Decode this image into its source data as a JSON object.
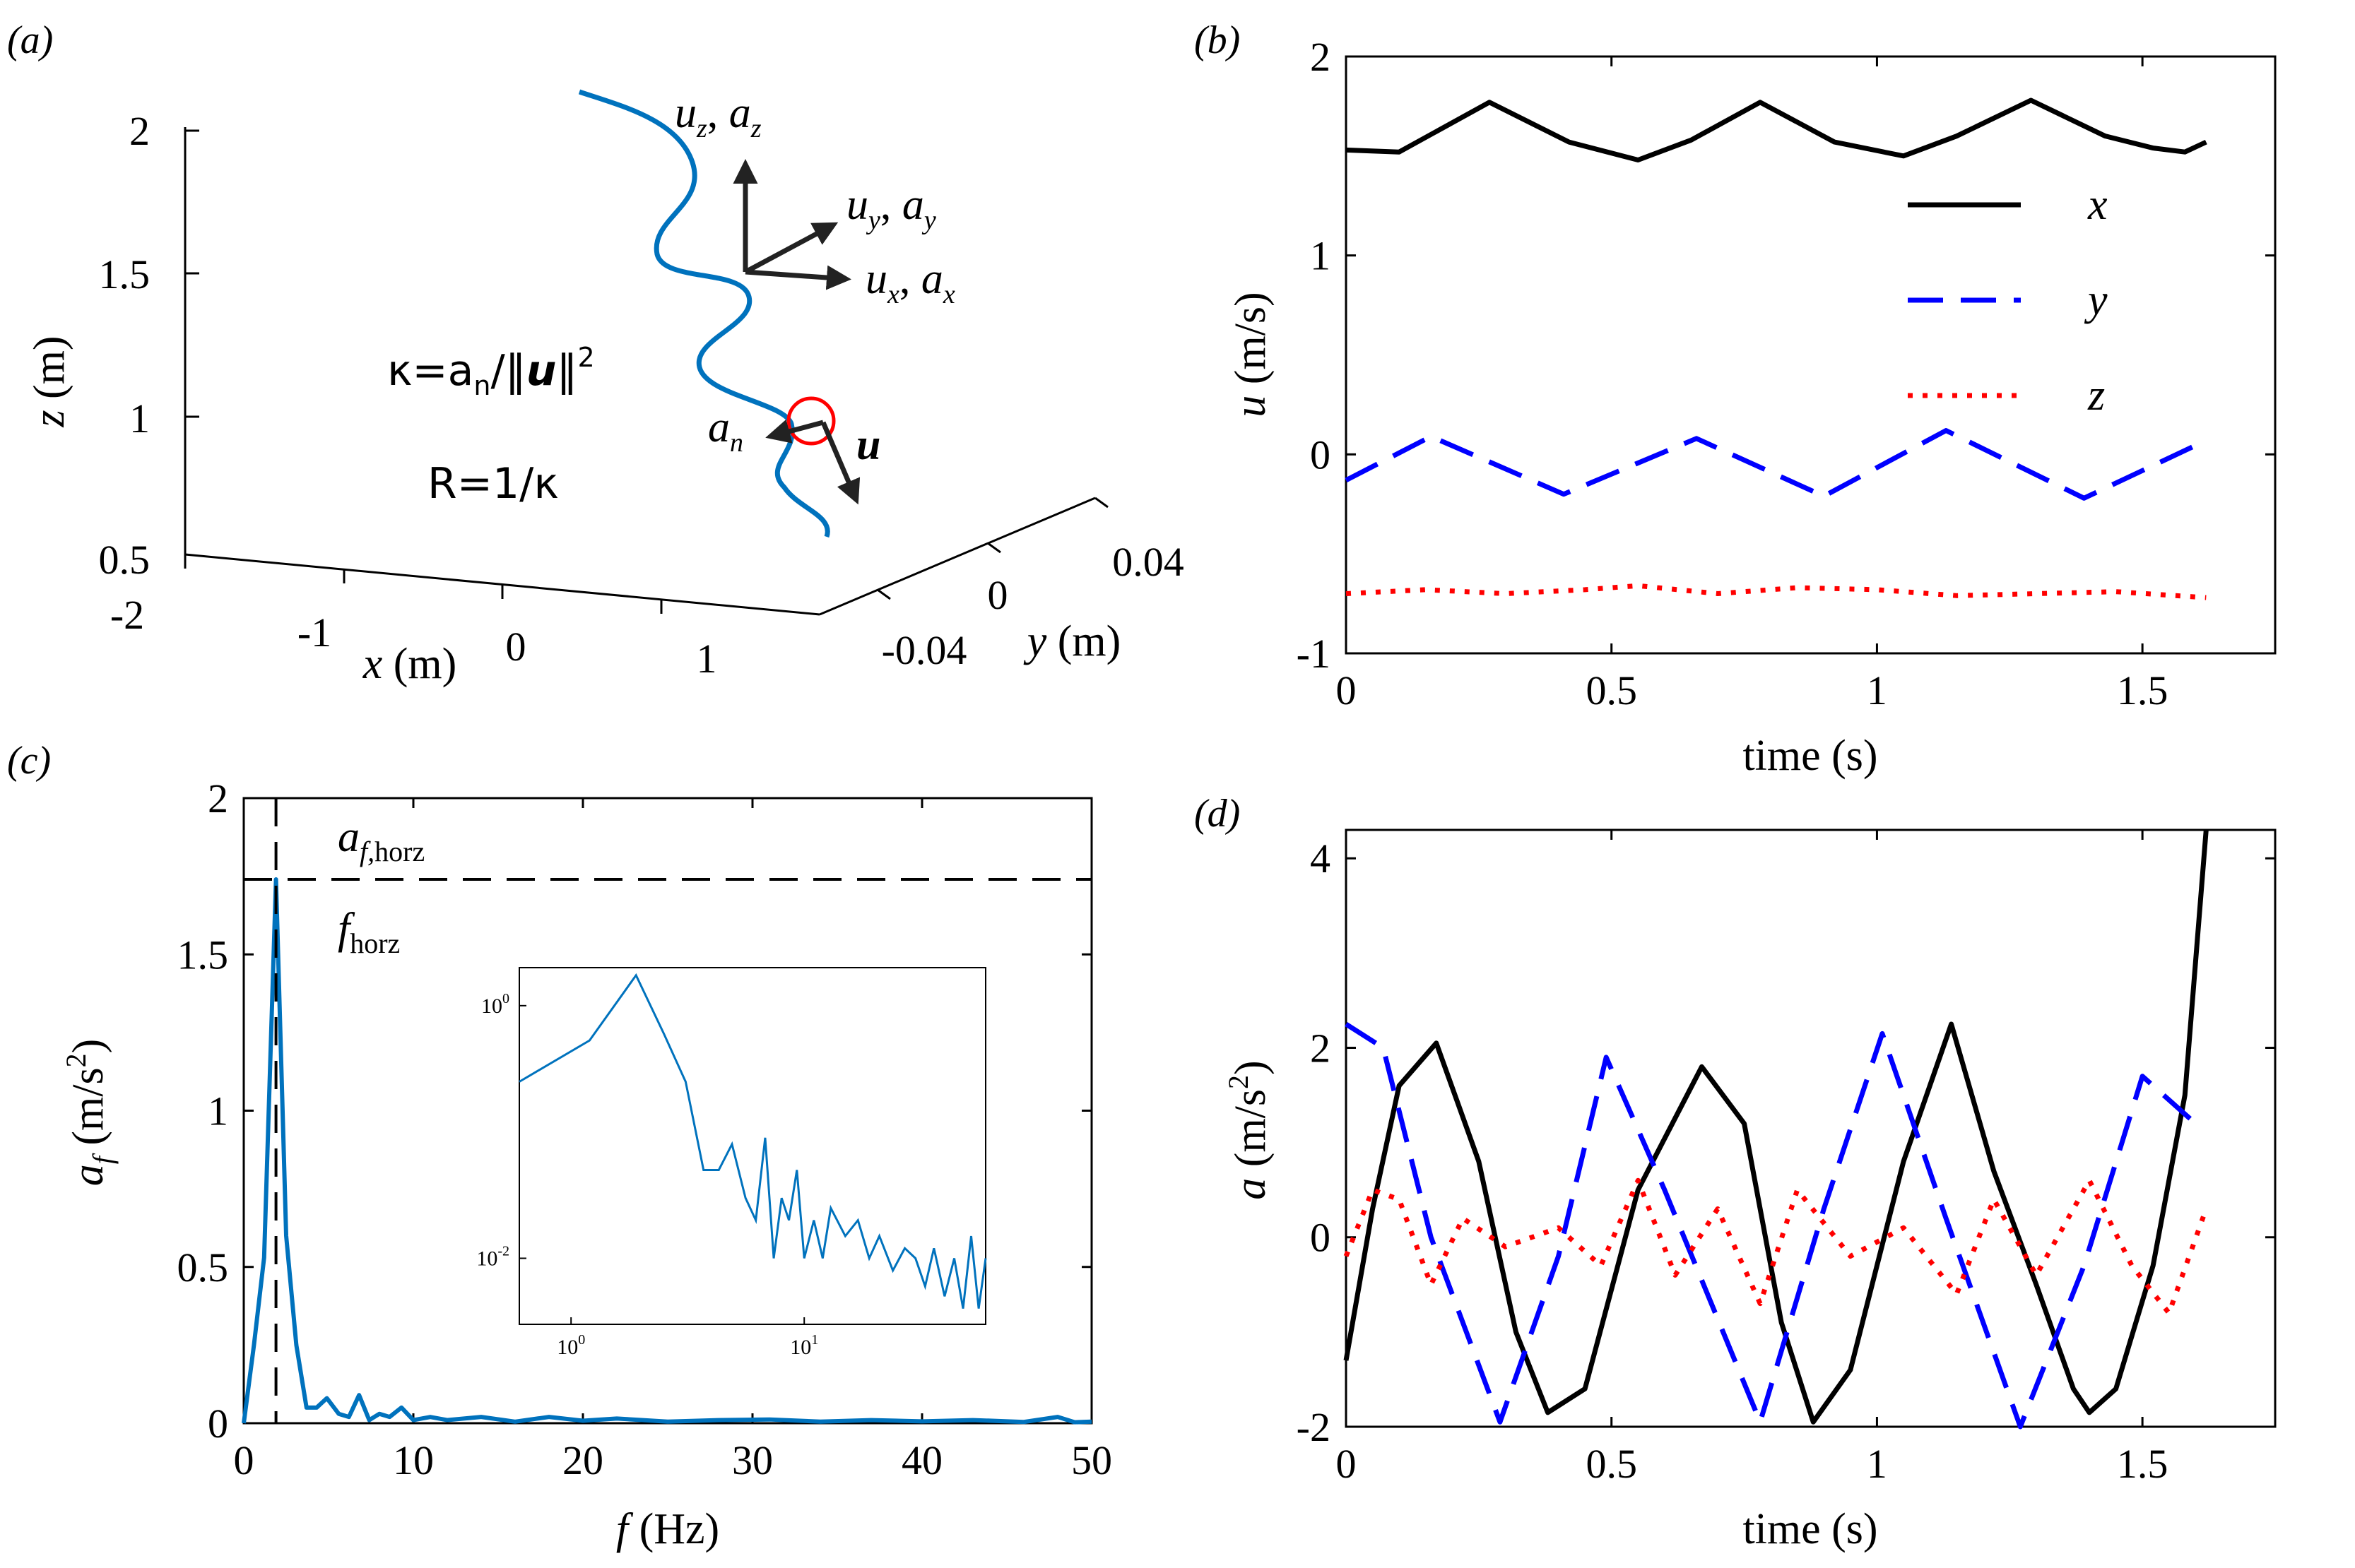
{
  "figure": {
    "colors": {
      "x": "#000000",
      "y": "#0000ff",
      "z": "#ff0000",
      "traj": "#0072bd",
      "axis": "#000000"
    }
  },
  "chart_data": [
    {
      "id": "a",
      "panel_label": "(a)",
      "type": "line",
      "title": "",
      "xlabel_var": "x",
      "xlabel_unit": "(m)",
      "ylabel_var": "y",
      "ylabel_unit": "(m)",
      "zlabel_var": "z",
      "zlabel_unit": "(m)",
      "xticks": [
        "-2",
        "-1",
        "0",
        "1"
      ],
      "yticks": [
        "-0.04",
        "0",
        "0.04"
      ],
      "zticks": [
        "0.5",
        "1",
        "1.5",
        "2"
      ],
      "zlim": [
        0.5,
        2
      ],
      "trajectory_z": [
        2.0,
        0.75
      ],
      "annotations": {
        "uz": "u",
        "uz_sub": "z",
        "az": "a",
        "az_sub": "z",
        "uy": "u",
        "uy_sub": "y",
        "ay": "a",
        "ay_sub": "y",
        "ux": "u",
        "ux_sub": "x",
        "ax": "a",
        "ax_sub": "x",
        "an": "a",
        "an_sub": "n",
        "u_vec": "u",
        "kappa_eq": "κ=a",
        "kappa_sub": "n",
        "kappa_tail": "/‖",
        "kappa_u": "u",
        "kappa_end": "‖",
        "kappa_sup": "2",
        "radius_eq": "R=1/κ"
      }
    },
    {
      "id": "b",
      "panel_label": "(b)",
      "type": "line",
      "title": "",
      "xlabel": "time (s)",
      "ylabel_var": "u",
      "ylabel_unit": "(m/s)",
      "xlim": [
        0,
        1.75
      ],
      "ylim": [
        -1,
        2
      ],
      "xticks": [
        "0",
        "0.5",
        "1",
        "1.5"
      ],
      "yticks": [
        "-1",
        "0",
        "1",
        "2"
      ],
      "legend": [
        "x",
        "y",
        "z"
      ],
      "legend_position": "upper-right",
      "series": [
        {
          "name": "x",
          "style": "solid",
          "values_desc": "u_x(t)",
          "x": [
            0,
            0.1,
            0.27,
            0.42,
            0.55,
            0.65,
            0.78,
            0.92,
            1.05,
            1.15,
            1.29,
            1.43,
            1.52,
            1.58,
            1.62
          ],
          "y": [
            1.53,
            1.52,
            1.77,
            1.57,
            1.48,
            1.58,
            1.77,
            1.57,
            1.5,
            1.6,
            1.78,
            1.6,
            1.54,
            1.52,
            1.57
          ]
        },
        {
          "name": "y",
          "style": "dashed",
          "x": [
            0,
            0.16,
            0.41,
            0.66,
            0.9,
            1.13,
            1.39,
            1.62
          ],
          "y": [
            -0.13,
            0.09,
            -0.2,
            0.08,
            -0.21,
            0.12,
            -0.22,
            0.07
          ]
        },
        {
          "name": "z",
          "style": "dotted",
          "x": [
            0,
            0.15,
            0.3,
            0.45,
            0.55,
            0.7,
            0.85,
            1.0,
            1.15,
            1.3,
            1.45,
            1.62
          ],
          "y": [
            -0.7,
            -0.68,
            -0.7,
            -0.68,
            -0.66,
            -0.7,
            -0.67,
            -0.68,
            -0.71,
            -0.7,
            -0.69,
            -0.72
          ]
        }
      ]
    },
    {
      "id": "c",
      "panel_label": "(c)",
      "type": "line",
      "title": "",
      "xlabel_var": "f",
      "xlabel_unit": "(Hz)",
      "ylabel_var": "a",
      "ylabel_sub": "f",
      "ylabel_unit": "(m/s",
      "ylabel_sup": "2",
      "ylabel_close": ")",
      "xlim": [
        0,
        50
      ],
      "ylim": [
        0,
        2
      ],
      "xticks": [
        "0",
        "10",
        "20",
        "30",
        "40",
        "50"
      ],
      "yticks": [
        "0",
        "0.5",
        "1",
        "1.5",
        "2"
      ],
      "annotations": {
        "a_f": "a",
        "a_f_sub": "f,",
        "a_f_sub2": "horz",
        "f_h": "f",
        "f_h_sub": "horz"
      },
      "peak_line_y": 1.74,
      "peak_line_x": 1.9,
      "series": [
        {
          "name": "spectrum",
          "x": [
            0,
            0.6,
            1.2,
            1.9,
            2.5,
            3.1,
            3.7,
            4.3,
            4.9,
            5.6,
            6.2,
            6.8,
            7.4,
            8,
            8.6,
            9.3,
            10,
            11,
            12,
            14,
            16,
            18,
            20,
            22,
            25,
            28,
            31,
            34,
            37,
            40,
            43,
            46,
            48,
            49,
            50
          ],
          "y": [
            0,
            0.25,
            0.53,
            1.74,
            0.6,
            0.25,
            0.05,
            0.05,
            0.08,
            0.03,
            0.02,
            0.09,
            0.01,
            0.03,
            0.02,
            0.05,
            0.01,
            0.02,
            0.01,
            0.02,
            0.005,
            0.02,
            0.008,
            0.015,
            0.005,
            0.01,
            0.012,
            0.005,
            0.01,
            0.006,
            0.01,
            0.004,
            0.02,
            0.003,
            0.005
          ]
        }
      ],
      "inset": {
        "type": "line",
        "xscale": "log",
        "yscale": "log",
        "xlim": [
          0.6,
          60
        ],
        "ylim": [
          0.003,
          2
        ],
        "xticks": [
          "10",
          "10"
        ],
        "xtick_exps": [
          "0",
          "1"
        ],
        "yticks": [
          "10",
          "10"
        ],
        "ytick_exps": [
          "-2",
          "0"
        ],
        "x": [
          0.6,
          1.2,
          1.9,
          2.5,
          3.1,
          3.7,
          4.3,
          4.9,
          5.6,
          6.2,
          6.8,
          7.4,
          8,
          8.6,
          9.3,
          10,
          11,
          12,
          13,
          15,
          17,
          19,
          21,
          24,
          27,
          30,
          33,
          36,
          40,
          44,
          48,
          52,
          56,
          60
        ],
        "y": [
          0.25,
          0.53,
          1.74,
          0.6,
          0.25,
          0.05,
          0.05,
          0.08,
          0.03,
          0.02,
          0.09,
          0.01,
          0.03,
          0.02,
          0.05,
          0.01,
          0.02,
          0.01,
          0.025,
          0.015,
          0.02,
          0.01,
          0.015,
          0.008,
          0.012,
          0.01,
          0.006,
          0.012,
          0.005,
          0.01,
          0.004,
          0.015,
          0.004,
          0.01
        ]
      }
    },
    {
      "id": "d",
      "panel_label": "(d)",
      "type": "line",
      "title": "",
      "xlabel": "time (s)",
      "ylabel_var": "a",
      "ylabel_unit": "(m/s",
      "ylabel_sup": "2",
      "ylabel_close": ")",
      "xlim": [
        0,
        1.75
      ],
      "ylim": [
        -2,
        4.3
      ],
      "xticks": [
        "0",
        "0.5",
        "1",
        "1.5"
      ],
      "yticks": [
        "-2",
        "0",
        "2",
        "4"
      ],
      "series": [
        {
          "name": "x",
          "style": "solid",
          "x": [
            0,
            0.05,
            0.1,
            0.17,
            0.25,
            0.32,
            0.38,
            0.45,
            0.55,
            0.67,
            0.75,
            0.82,
            0.88,
            0.95,
            1.05,
            1.14,
            1.22,
            1.3,
            1.37,
            1.4,
            1.45,
            1.52,
            1.58,
            1.62
          ],
          "y": [
            -1.3,
            0.3,
            1.6,
            2.05,
            0.8,
            -1.0,
            -1.85,
            -1.6,
            0.5,
            1.8,
            1.2,
            -0.9,
            -1.95,
            -1.4,
            0.8,
            2.25,
            0.7,
            -0.5,
            -1.6,
            -1.85,
            -1.6,
            -0.3,
            1.5,
            4.3
          ]
        },
        {
          "name": "y",
          "style": "dashed",
          "x": [
            0,
            0.07,
            0.16,
            0.29,
            0.4,
            0.49,
            0.6,
            0.78,
            0.9,
            1.01,
            1.13,
            1.27,
            1.39,
            1.5,
            1.6
          ],
          "y": [
            2.25,
            2.0,
            0.0,
            -1.95,
            -0.2,
            1.9,
            0.5,
            -1.95,
            0.3,
            2.15,
            0.2,
            -2.0,
            -0.3,
            1.7,
            1.2
          ]
        },
        {
          "name": "z",
          "style": "dotted",
          "x": [
            0,
            0.05,
            0.1,
            0.16,
            0.22,
            0.3,
            0.4,
            0.48,
            0.55,
            0.62,
            0.7,
            0.78,
            0.85,
            0.95,
            1.05,
            1.15,
            1.22,
            1.3,
            1.4,
            1.48,
            1.55,
            1.62
          ],
          "y": [
            -0.2,
            0.5,
            0.4,
            -0.5,
            0.2,
            -0.1,
            0.1,
            -0.3,
            0.6,
            -0.4,
            0.3,
            -0.7,
            0.5,
            -0.2,
            0.1,
            -0.6,
            0.4,
            -0.4,
            0.6,
            -0.3,
            -0.8,
            0.3
          ]
        }
      ]
    }
  ]
}
